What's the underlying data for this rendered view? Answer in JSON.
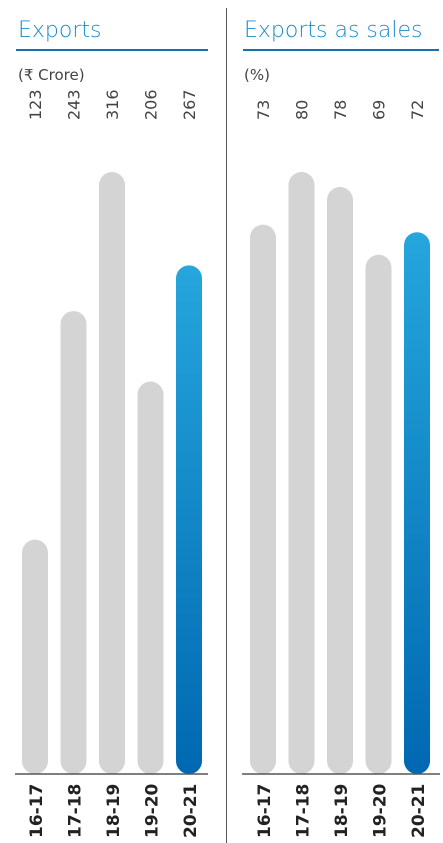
{
  "chart_data": [
    {
      "type": "bar",
      "title": "Exports",
      "unit": "(₹ Crore)",
      "categories": [
        "16-17",
        "17-18",
        "18-19",
        "19-20",
        "20-21"
      ],
      "values": [
        123,
        243,
        316,
        206,
        267
      ],
      "value_labels": [
        "123",
        "243",
        "316",
        "206",
        "267"
      ],
      "ylim": [
        0,
        316
      ],
      "highlight_index": 4
    },
    {
      "type": "bar",
      "title": "Exports as sales",
      "unit": "(%)",
      "categories": [
        "16-17",
        "17-18",
        "18-19",
        "19-20",
        "20-21"
      ],
      "values": [
        73,
        80,
        78,
        69,
        72
      ],
      "value_labels": [
        "73",
        "80",
        "78",
        "69",
        "72"
      ],
      "ylim": [
        0,
        80
      ],
      "highlight_index": 4
    }
  ],
  "colors": {
    "bar_default": "#d4d4d4",
    "bar_highlight_top": "#25a6dc",
    "bar_highlight_bottom": "#0068b1",
    "title": "#1a8bc9",
    "rule": "#1a6fa6"
  }
}
